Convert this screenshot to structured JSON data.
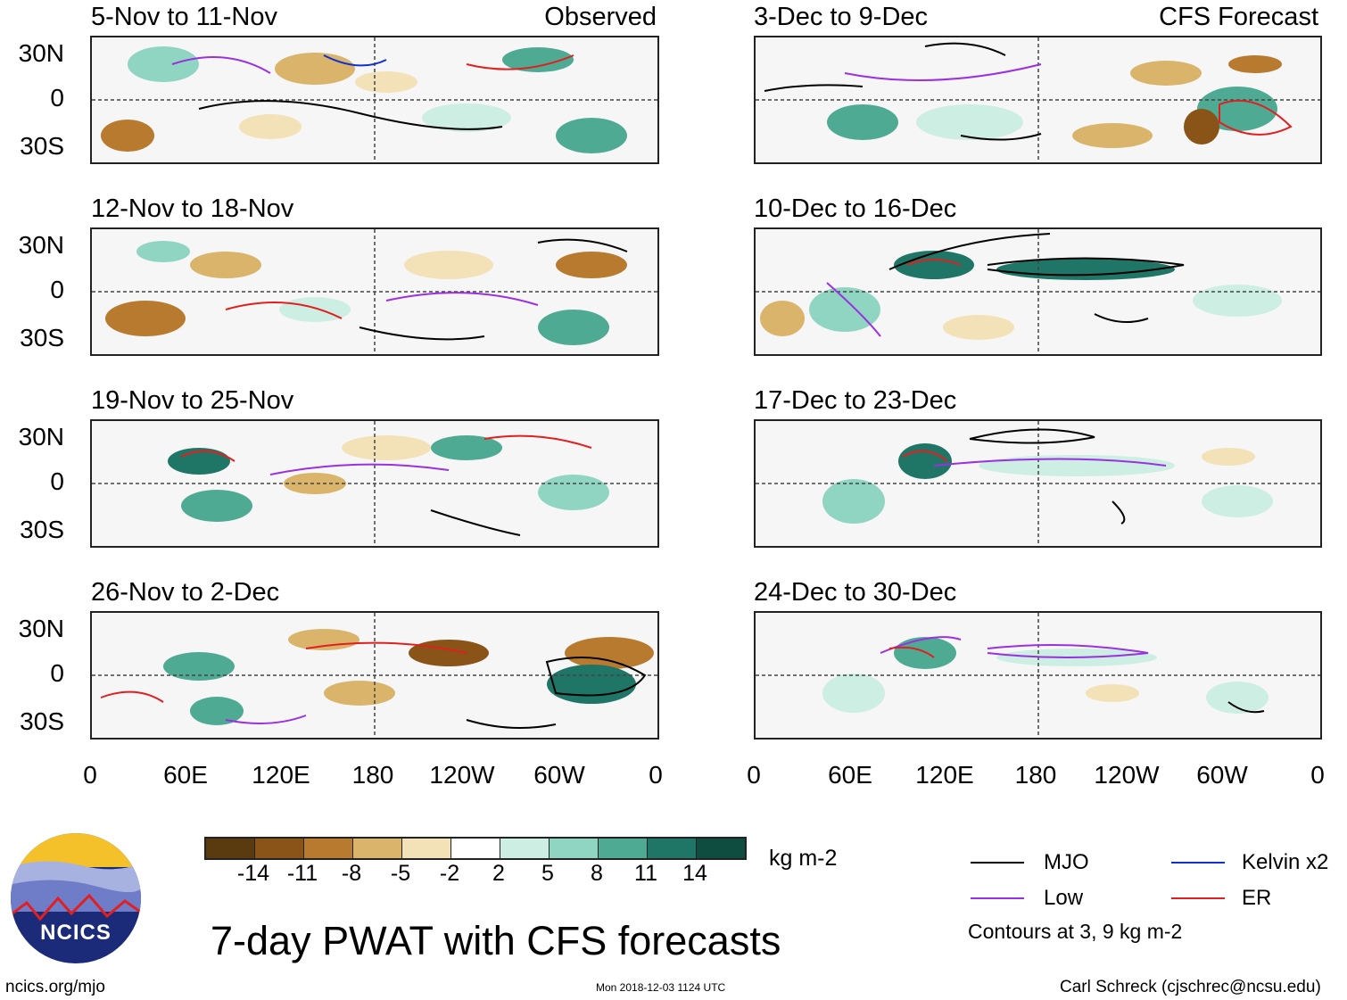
{
  "panels_left": [
    {
      "period": "5-Nov to 11-Nov",
      "tag": "Observed"
    },
    {
      "period": "12-Nov to 18-Nov",
      "tag": ""
    },
    {
      "period": "19-Nov to 25-Nov",
      "tag": ""
    },
    {
      "period": "26-Nov to 2-Dec",
      "tag": ""
    }
  ],
  "panels_right": [
    {
      "period": "3-Dec to 9-Dec",
      "tag": "CFS Forecast"
    },
    {
      "period": "10-Dec to 16-Dec",
      "tag": ""
    },
    {
      "period": "17-Dec to 23-Dec",
      "tag": ""
    },
    {
      "period": "24-Dec to 30-Dec",
      "tag": ""
    }
  ],
  "lat_labels": [
    "30N",
    "0",
    "30S"
  ],
  "lon_labels": [
    "0",
    "60E",
    "120E",
    "180",
    "120W",
    "60W",
    "0"
  ],
  "colorbar": {
    "ticks": [
      "-14",
      "-11",
      "-8",
      "-5",
      "-2",
      "2",
      "5",
      "8",
      "11",
      "14"
    ],
    "units": "kg m-2",
    "colors": [
      "#5a3a0f",
      "#8a5418",
      "#b87a2e",
      "#d9b46a",
      "#f3e2b8",
      "#ffffff",
      "#cdeee3",
      "#8fd5c1",
      "#4faa94",
      "#1f7566",
      "#0f4d40"
    ]
  },
  "legend": {
    "items": [
      {
        "label": "MJO",
        "color": "#000000"
      },
      {
        "label": "Kelvin x2",
        "color": "#1030d0"
      },
      {
        "label": "Low",
        "color": "#9a30e0"
      },
      {
        "label": "ER",
        "color": "#e02020"
      }
    ],
    "note": "Contours at 3, 9 kg m-2"
  },
  "logo_text": "NCICS",
  "title": "7-day PWAT with CFS forecasts",
  "footer": {
    "url": "ncics.org/mjo",
    "timestamp": "Mon 2018-12-03 1124 UTC",
    "credit": "Carl Schreck (cjschrec@ncsu.edu)"
  }
}
